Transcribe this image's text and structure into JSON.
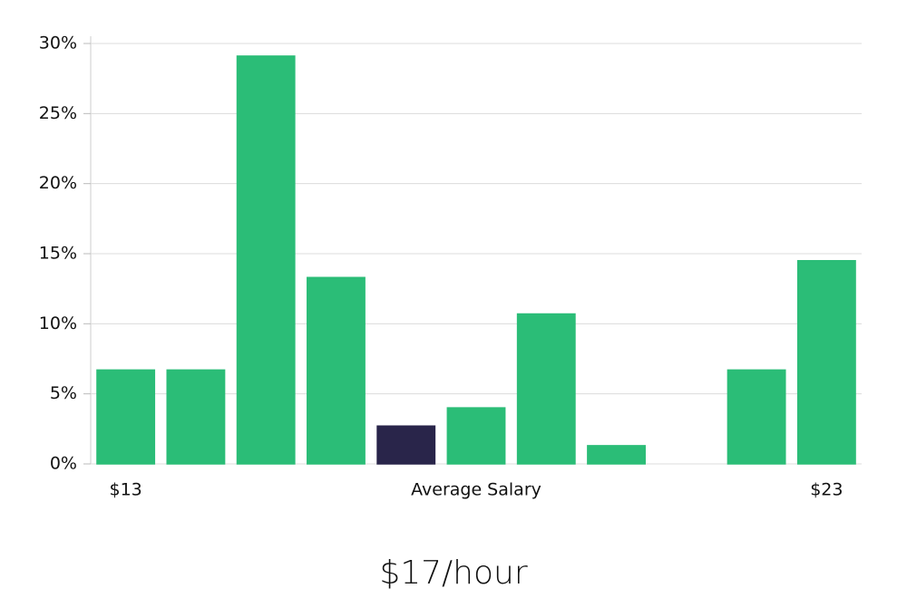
{
  "chart_data": {
    "type": "bar",
    "caption": "$17/hour",
    "categories": [
      "$13",
      null,
      null,
      null,
      null,
      "Average Salary",
      null,
      null,
      null,
      null,
      "$23"
    ],
    "values": [
      6.7,
      6.7,
      29.1,
      13.3,
      2.7,
      4.0,
      10.7,
      1.3,
      0,
      6.7,
      14.5
    ],
    "colors": [
      "#2bbd77",
      "#2bbd77",
      "#2bbd77",
      "#2bbd77",
      "#29254a",
      "#2bbd77",
      "#2bbd77",
      "#2bbd77",
      "#2bbd77",
      "#2bbd77",
      "#2bbd77"
    ],
    "ylim": [
      0,
      30
    ],
    "yticks": [
      {
        "value": 0,
        "label": "0%"
      },
      {
        "value": 5,
        "label": "5%"
      },
      {
        "value": 10,
        "label": "10%"
      },
      {
        "value": 15,
        "label": "15%"
      },
      {
        "value": 20,
        "label": "20%"
      },
      {
        "value": 25,
        "label": "25%"
      },
      {
        "value": 30,
        "label": "30%"
      }
    ],
    "grid": true
  }
}
